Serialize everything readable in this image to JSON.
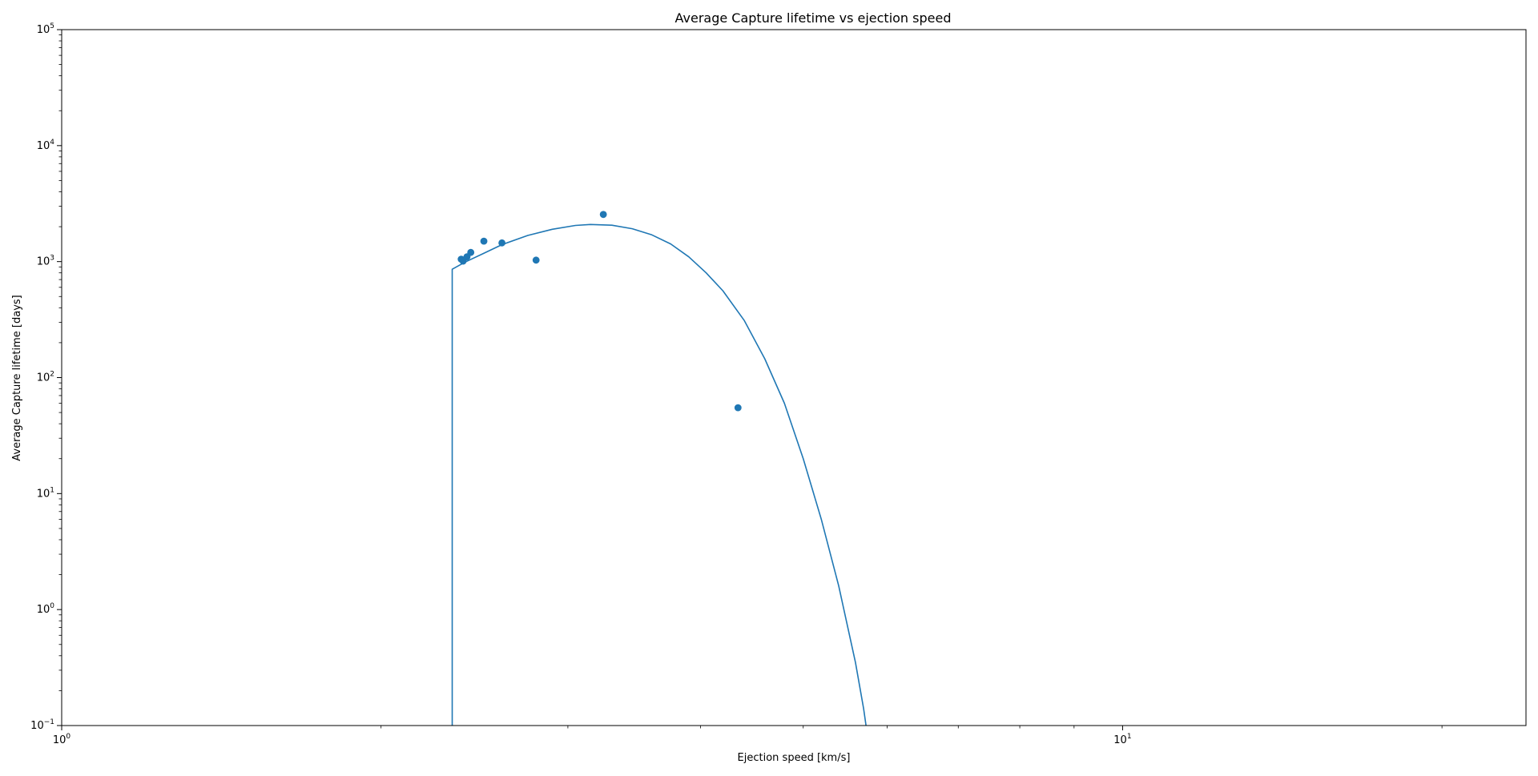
{
  "chart_data": {
    "type": "scatter",
    "title": "Average Capture lifetime vs ejection speed",
    "xlabel": "Ejection speed [km/s]",
    "ylabel": "Average Capture lifetime [days]",
    "xscale": "log",
    "yscale": "log",
    "xlim": [
      1,
      24
    ],
    "ylim": [
      0.1,
      100000
    ],
    "grid": false,
    "x_ticks": [
      {
        "value": 1,
        "base": "10",
        "exp": "0"
      },
      {
        "value": 10,
        "base": "10",
        "exp": "1"
      }
    ],
    "y_ticks": [
      {
        "value": 0.1,
        "base": "10",
        "exp": "−1"
      },
      {
        "value": 1,
        "base": "10",
        "exp": "0"
      },
      {
        "value": 10,
        "base": "10",
        "exp": "1"
      },
      {
        "value": 100,
        "base": "10",
        "exp": "2"
      },
      {
        "value": 1000,
        "base": "10",
        "exp": "3"
      },
      {
        "value": 10000,
        "base": "10",
        "exp": "4"
      },
      {
        "value": 100000,
        "base": "10",
        "exp": "5"
      }
    ],
    "color": "#1f77b4",
    "series": [
      {
        "kind": "line",
        "points": [
          [
            2.334,
            0.1
          ],
          [
            2.334,
            860
          ],
          [
            2.4,
            990
          ],
          [
            2.5,
            1180
          ],
          [
            2.6,
            1400
          ],
          [
            2.75,
            1680
          ],
          [
            2.9,
            1900
          ],
          [
            3.05,
            2050
          ],
          [
            3.15,
            2090
          ],
          [
            3.3,
            2060
          ],
          [
            3.45,
            1920
          ],
          [
            3.6,
            1700
          ],
          [
            3.75,
            1420
          ],
          [
            3.9,
            1100
          ],
          [
            4.05,
            800
          ],
          [
            4.2,
            560
          ],
          [
            4.4,
            310
          ],
          [
            4.6,
            145
          ],
          [
            4.8,
            60
          ],
          [
            5.0,
            20
          ],
          [
            5.2,
            6
          ],
          [
            5.4,
            1.6
          ],
          [
            5.6,
            0.35
          ],
          [
            5.7,
            0.14
          ],
          [
            5.73,
            0.1
          ]
        ]
      },
      {
        "kind": "scatter",
        "points": [
          [
            2.38,
            1050
          ],
          [
            2.39,
            1010
          ],
          [
            2.41,
            1100
          ],
          [
            2.43,
            1200
          ],
          [
            2.5,
            1500
          ],
          [
            2.6,
            1450
          ],
          [
            2.8,
            1030
          ],
          [
            3.24,
            2550
          ],
          [
            4.34,
            55
          ]
        ]
      }
    ]
  }
}
